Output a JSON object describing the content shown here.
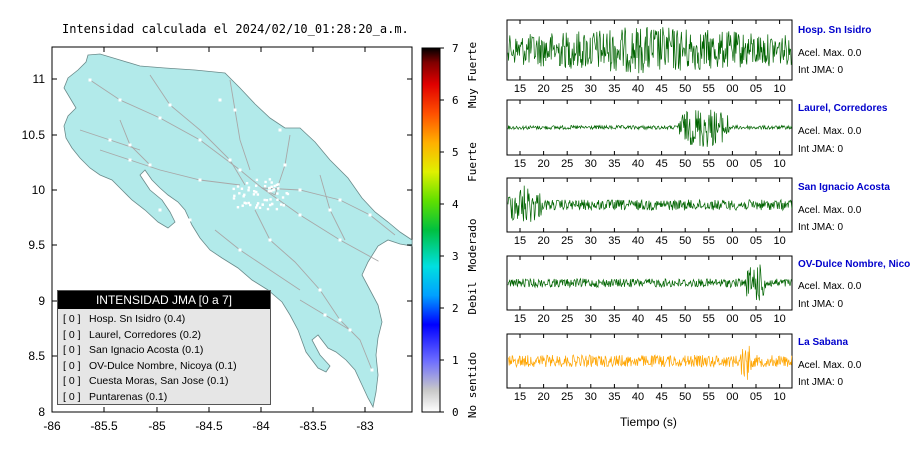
{
  "map": {
    "title": "Intensidad calculada el 2024/02/10_01:28:20_a.m.",
    "x_ticks": [
      "-86",
      "-85.5",
      "-85",
      "-84.5",
      "-84",
      "-83.5",
      "-83"
    ],
    "y_ticks": [
      "11",
      "10.5",
      "10",
      "9.5",
      "9",
      "8.5",
      "8"
    ],
    "land_color": "#b2eaea",
    "road_color": "#a8a8a8"
  },
  "colorbar": {
    "ticks": [
      "0",
      "1",
      "2",
      "3",
      "4",
      "5",
      "6",
      "7"
    ],
    "labels": [
      "No sentido",
      "Debil",
      "Moderado",
      "Fuerte",
      "Muy Fuerte"
    ]
  },
  "legend": {
    "header": "INTENSIDAD JMA [0 a 7]",
    "items": [
      {
        "value": "[ 0 ]",
        "label": "Hosp. Sn Isidro (0.4)"
      },
      {
        "value": "[ 0 ]",
        "label": "Laurel, Corredores (0.2)"
      },
      {
        "value": "[ 0 ]",
        "label": "San Ignacio Acosta (0.1)"
      },
      {
        "value": "[ 0 ]",
        "label": "OV-Dulce Nombre, Nicoya (0.1)"
      },
      {
        "value": "[ 0 ]",
        "label": "Cuesta Moras, San Jose (0.1)"
      },
      {
        "value": "[ 0 ]",
        "label": "Puntarenas (0.1)"
      }
    ]
  },
  "traces": {
    "x_ticks": [
      "15",
      "20",
      "25",
      "30",
      "35",
      "40",
      "45",
      "50",
      "55",
      "00",
      "05",
      "10"
    ],
    "x_label": "Tiempo (s)",
    "stations": [
      {
        "name": "Hosp. Sn Isidro",
        "acel": "Acel. Max. 0.0",
        "int": "Int JMA: 0",
        "color": "#006400"
      },
      {
        "name": "Laurel, Corredores",
        "acel": "Acel. Max. 0.0",
        "int": "Int JMA: 0",
        "color": "#006400"
      },
      {
        "name": "San Ignacio Acosta",
        "acel": "Acel. Max. 0.0",
        "int": "Int JMA: 0",
        "color": "#006400"
      },
      {
        "name": "OV-Dulce Nombre, Nicoya",
        "acel": "Acel. Max. 0.0",
        "int": "Int JMA: 0",
        "color": "#006400"
      },
      {
        "name": "La Sabana",
        "acel": "Acel. Max. 0.0",
        "int": "Int JMA: 0",
        "color": "#ffa500"
      }
    ]
  }
}
